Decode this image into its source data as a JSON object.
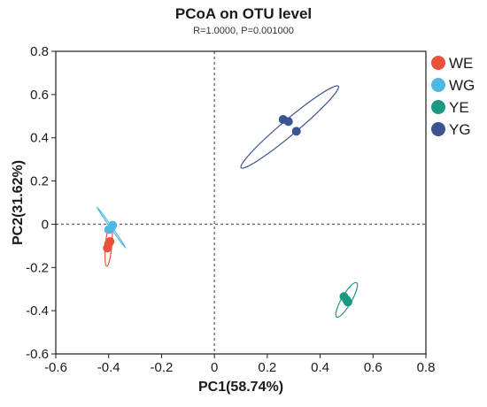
{
  "chart_data": {
    "type": "scatter",
    "title": "PCoA on OTU level",
    "subtitle": "R=1.0000, P=0.001000",
    "xlabel": "PC1(58.74%)",
    "ylabel": "PC2(31.62%)",
    "xlim": [
      -0.6,
      0.8
    ],
    "ylim": [
      -0.6,
      0.8
    ],
    "xticks": [
      -0.6,
      -0.4,
      -0.2,
      0,
      0.2,
      0.4,
      0.6,
      0.8
    ],
    "yticks": [
      -0.6,
      -0.4,
      -0.2,
      0,
      0.2,
      0.4,
      0.6,
      0.8
    ],
    "xtick_labels": [
      "-0.6",
      "-0.4",
      "-0.2",
      "0",
      "0.2",
      "0.4",
      "0.6",
      "0.8"
    ],
    "ytick_labels": [
      "-0.6",
      "-0.4",
      "-0.2",
      "0",
      "0.2",
      "0.4",
      "0.6",
      "0.8"
    ],
    "reference_lines": {
      "x": 0,
      "y": 0,
      "style": "dotted"
    },
    "legend_position": "right",
    "series": [
      {
        "name": "WE",
        "color": "#e8513a",
        "points": [
          [
            -0.395,
            -0.08
          ],
          [
            -0.4,
            -0.09
          ],
          [
            -0.405,
            -0.11
          ]
        ],
        "ellipse": {
          "center": [
            -0.4,
            -0.095
          ],
          "semi_axes": [
            0.012,
            0.1
          ],
          "angle_deg": 5
        }
      },
      {
        "name": "WG",
        "color": "#4eb8e0",
        "points": [
          [
            -0.385,
            -0.005
          ],
          [
            -0.39,
            -0.015
          ],
          [
            -0.4,
            -0.025
          ]
        ],
        "ellipse": {
          "center": [
            -0.39,
            -0.015
          ],
          "semi_axes": [
            0.095,
            0.004
          ],
          "angle_deg": 55
        }
      },
      {
        "name": "YE",
        "color": "#1a9882",
        "points": [
          [
            0.49,
            -0.335
          ],
          [
            0.5,
            -0.35
          ],
          [
            0.505,
            -0.36
          ]
        ],
        "ellipse": {
          "center": [
            0.5,
            -0.35
          ],
          "semi_axes": [
            0.075,
            0.023
          ],
          "angle_deg": 120
        }
      },
      {
        "name": "YG",
        "color": "#3a5590",
        "points": [
          [
            0.26,
            0.485
          ],
          [
            0.28,
            0.475
          ],
          [
            0.31,
            0.43
          ]
        ],
        "ellipse": {
          "center": [
            0.285,
            0.45
          ],
          "semi_axes": [
            0.24,
            0.035
          ],
          "angle_deg": -40
        }
      }
    ]
  }
}
